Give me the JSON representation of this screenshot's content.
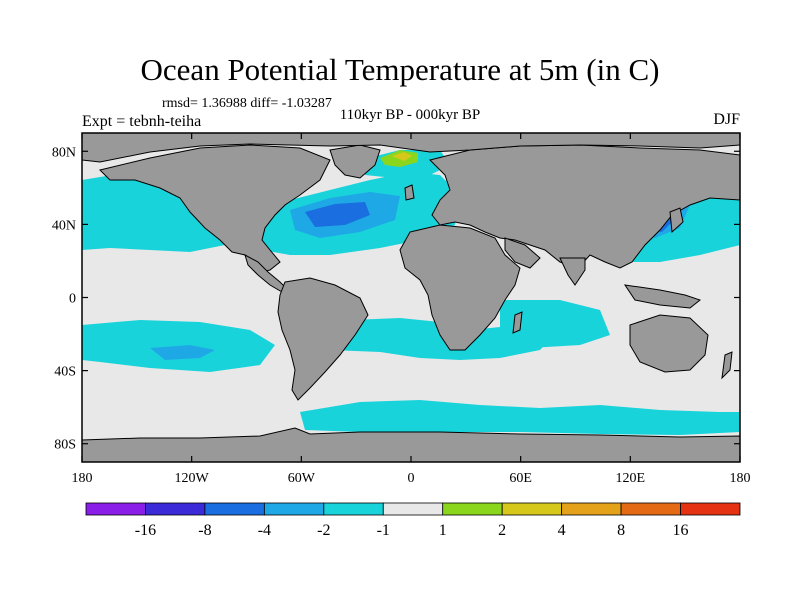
{
  "title": "Ocean Potential Temperature at 5m (in C)",
  "stats": "rmsd= 1.36988 diff= -1.03287",
  "experiment": "Expt = tebnh-teiha",
  "period": "110kyr BP - 000kyr BP",
  "season": "DJF",
  "map": {
    "lat_ticks": [
      {
        "value": 80,
        "label": "80N"
      },
      {
        "value": 40,
        "label": "40N"
      },
      {
        "value": 0,
        "label": "0"
      },
      {
        "value": -40,
        "label": "40S"
      },
      {
        "value": -80,
        "label": "80S"
      }
    ],
    "lon_ticks": [
      {
        "value": -180,
        "label": "180"
      },
      {
        "value": -120,
        "label": "120W"
      },
      {
        "value": -60,
        "label": "60W"
      },
      {
        "value": 0,
        "label": "0"
      },
      {
        "value": 60,
        "label": "60E"
      },
      {
        "value": 120,
        "label": "120E"
      },
      {
        "value": 180,
        "label": "180"
      }
    ],
    "colors": {
      "land": "#999999",
      "near_zero": "#e8e8e8",
      "cool": "#19d3db",
      "cooler": "#1fa8e6",
      "coldest": "#1a6ee0"
    }
  },
  "colorbar": {
    "colors": [
      "#8a1ee8",
      "#3a2ad8",
      "#1a6ee0",
      "#1fa8e6",
      "#19d3db",
      "#e8e8e8",
      "#89d61c",
      "#d6c81a",
      "#e4a21a",
      "#e46a14",
      "#e43212"
    ],
    "labels": [
      "-16",
      "-8",
      "-4",
      "-2",
      "-1",
      "1",
      "2",
      "4",
      "8",
      "16"
    ]
  }
}
